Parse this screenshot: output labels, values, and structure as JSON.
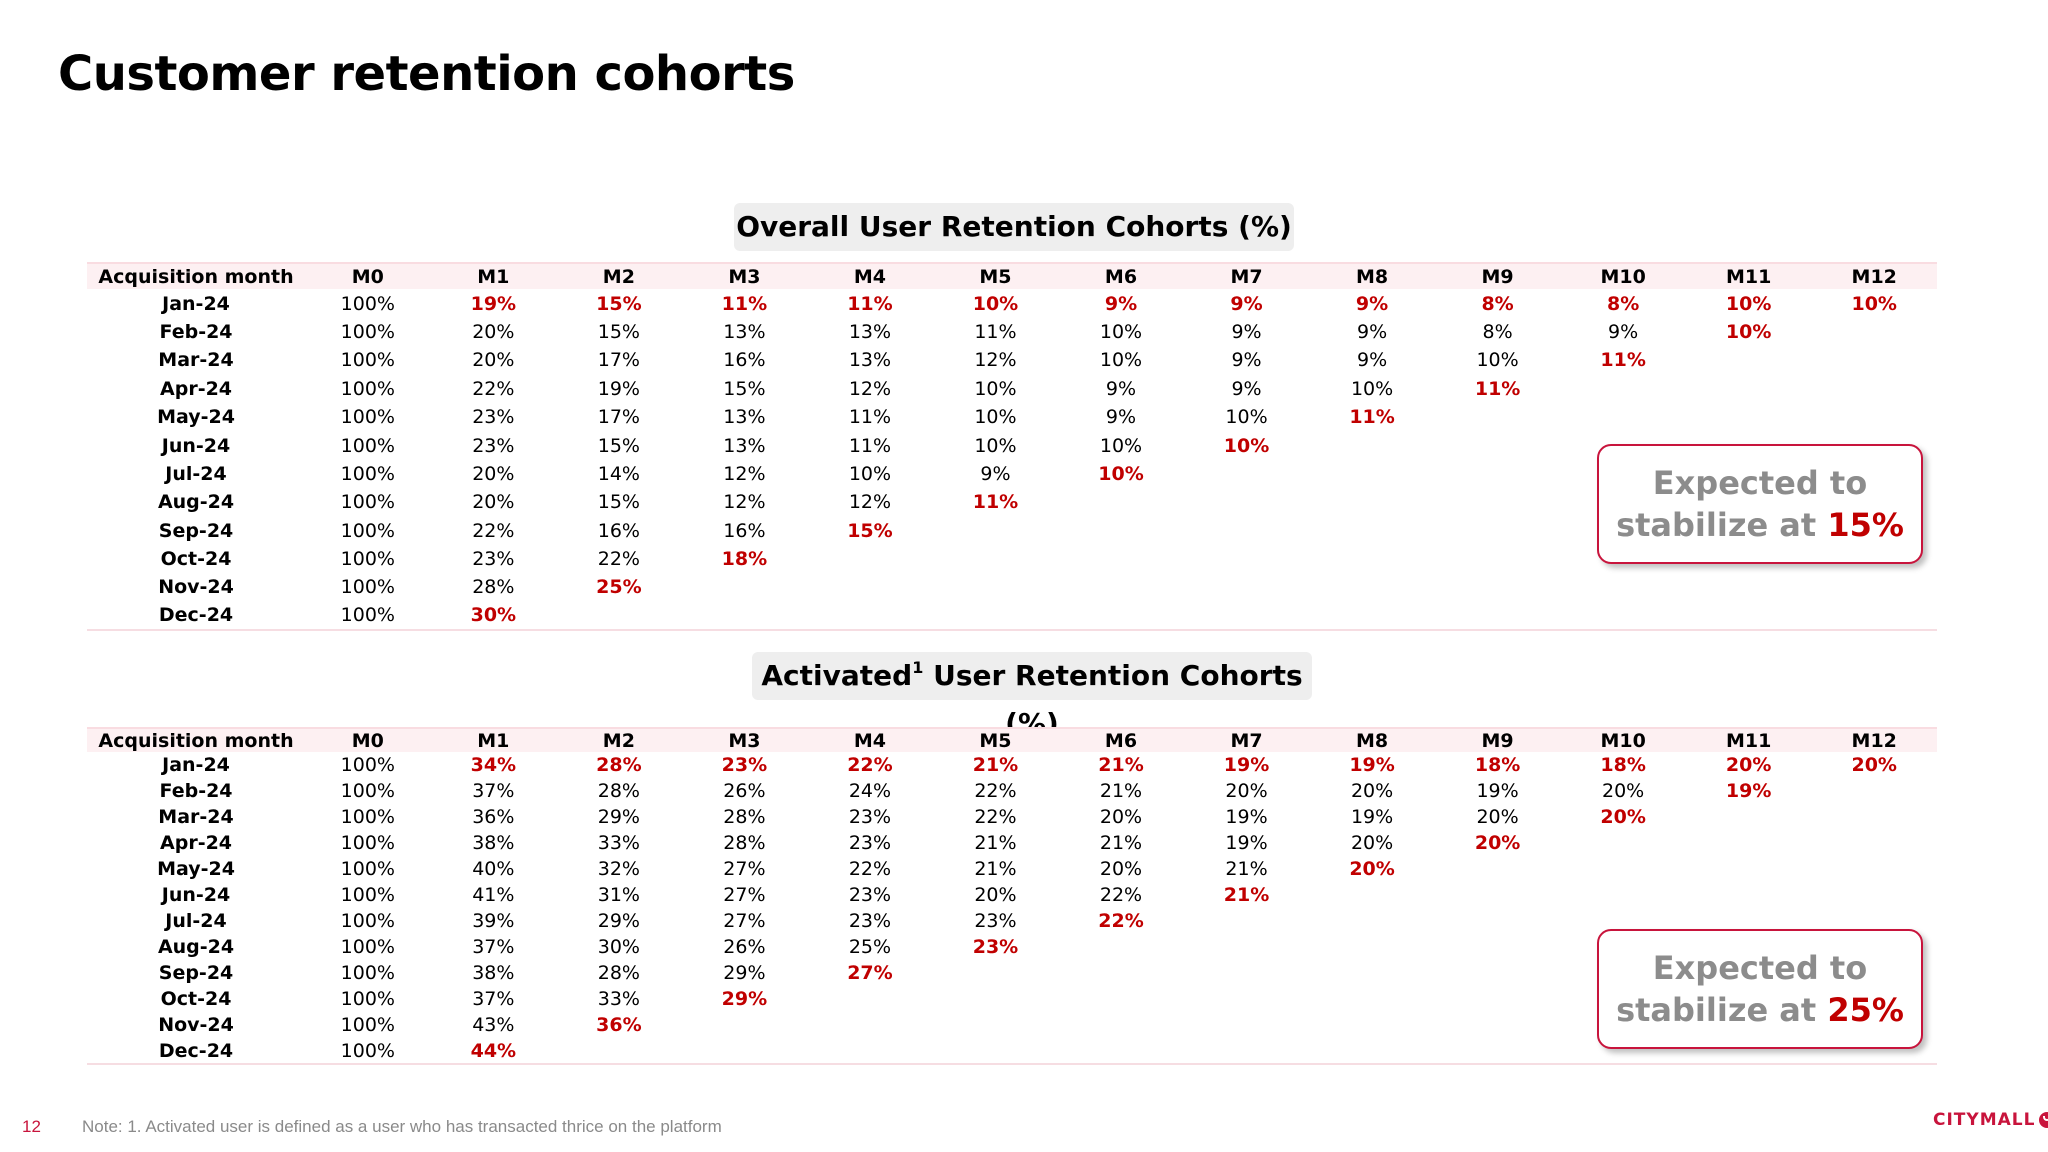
{
  "slide": {
    "title": "Customer retention cohorts",
    "page_number": "12",
    "note": "Note: 1. Activated user is defined as a user who has transacted thrice on the platform",
    "logo_text": "CITYMALL"
  },
  "colors": {
    "highlight": "#c00000",
    "brand": "#c8143c",
    "callout_text": "#8c8c8c",
    "header_band": "#fdf0f2"
  },
  "overall": {
    "title": "Overall User Retention Cohorts (%)",
    "columns": [
      "Acquisition  month",
      "M0",
      "M1",
      "M2",
      "M3",
      "M4",
      "M5",
      "M6",
      "M7",
      "M8",
      "M9",
      "M10",
      "M11",
      "M12"
    ],
    "rows": [
      {
        "month": "Jan-24",
        "values": [
          "100%",
          "19%",
          "15%",
          "11%",
          "11%",
          "10%",
          "9%",
          "9%",
          "9%",
          "8%",
          "8%",
          "10%",
          "10%"
        ],
        "highlight_from": 1
      },
      {
        "month": "Feb-24",
        "values": [
          "100%",
          "20%",
          "15%",
          "13%",
          "13%",
          "11%",
          "10%",
          "9%",
          "9%",
          "8%",
          "9%",
          "10%"
        ],
        "highlight_from": 11
      },
      {
        "month": "Mar-24",
        "values": [
          "100%",
          "20%",
          "17%",
          "16%",
          "13%",
          "12%",
          "10%",
          "9%",
          "9%",
          "10%",
          "11%"
        ],
        "highlight_from": 10
      },
      {
        "month": "Apr-24",
        "values": [
          "100%",
          "22%",
          "19%",
          "15%",
          "12%",
          "10%",
          "9%",
          "9%",
          "10%",
          "11%"
        ],
        "highlight_from": 9
      },
      {
        "month": "May-24",
        "values": [
          "100%",
          "23%",
          "17%",
          "13%",
          "11%",
          "10%",
          "9%",
          "10%",
          "11%"
        ],
        "highlight_from": 8
      },
      {
        "month": "Jun-24",
        "values": [
          "100%",
          "23%",
          "15%",
          "13%",
          "11%",
          "10%",
          "10%",
          "10%"
        ],
        "highlight_from": 7
      },
      {
        "month": "Jul-24",
        "values": [
          "100%",
          "20%",
          "14%",
          "12%",
          "10%",
          "9%",
          "10%"
        ],
        "highlight_from": 6
      },
      {
        "month": "Aug-24",
        "values": [
          "100%",
          "20%",
          "15%",
          "12%",
          "12%",
          "11%"
        ],
        "highlight_from": 5
      },
      {
        "month": "Sep-24",
        "values": [
          "100%",
          "22%",
          "16%",
          "16%",
          "15%"
        ],
        "highlight_from": 4
      },
      {
        "month": "Oct-24",
        "values": [
          "100%",
          "23%",
          "22%",
          "18%"
        ],
        "highlight_from": 3
      },
      {
        "month": "Nov-24",
        "values": [
          "100%",
          "28%",
          "25%"
        ],
        "highlight_from": 2
      },
      {
        "month": "Dec-24",
        "values": [
          "100%",
          "30%"
        ],
        "highlight_from": 1
      }
    ],
    "callout": {
      "line1": "Expected to",
      "line2_prefix": "stabilize at",
      "value": "15%"
    }
  },
  "activated": {
    "title_prefix": "Activated",
    "title_sup": "1",
    "title_suffix": " User Retention Cohorts (%)",
    "columns": [
      "Acquisition  month",
      "M0",
      "M1",
      "M2",
      "M3",
      "M4",
      "M5",
      "M6",
      "M7",
      "M8",
      "M9",
      "M10",
      "M11",
      "M12"
    ],
    "rows": [
      {
        "month": "Jan-24",
        "values": [
          "100%",
          "34%",
          "28%",
          "23%",
          "22%",
          "21%",
          "21%",
          "19%",
          "19%",
          "18%",
          "18%",
          "20%",
          "20%"
        ],
        "highlight_from": 1
      },
      {
        "month": "Feb-24",
        "values": [
          "100%",
          "37%",
          "28%",
          "26%",
          "24%",
          "22%",
          "21%",
          "20%",
          "20%",
          "19%",
          "20%",
          "19%"
        ],
        "highlight_from": 11
      },
      {
        "month": "Mar-24",
        "values": [
          "100%",
          "36%",
          "29%",
          "28%",
          "23%",
          "22%",
          "20%",
          "19%",
          "19%",
          "20%",
          "20%"
        ],
        "highlight_from": 10
      },
      {
        "month": "Apr-24",
        "values": [
          "100%",
          "38%",
          "33%",
          "28%",
          "23%",
          "21%",
          "21%",
          "19%",
          "20%",
          "20%"
        ],
        "highlight_from": 9
      },
      {
        "month": "May-24",
        "values": [
          "100%",
          "40%",
          "32%",
          "27%",
          "22%",
          "21%",
          "20%",
          "21%",
          "20%"
        ],
        "highlight_from": 8
      },
      {
        "month": "Jun-24",
        "values": [
          "100%",
          "41%",
          "31%",
          "27%",
          "23%",
          "20%",
          "22%",
          "21%"
        ],
        "highlight_from": 7
      },
      {
        "month": "Jul-24",
        "values": [
          "100%",
          "39%",
          "29%",
          "27%",
          "23%",
          "23%",
          "22%"
        ],
        "highlight_from": 6
      },
      {
        "month": "Aug-24",
        "values": [
          "100%",
          "37%",
          "30%",
          "26%",
          "25%",
          "23%"
        ],
        "highlight_from": 5
      },
      {
        "month": "Sep-24",
        "values": [
          "100%",
          "38%",
          "28%",
          "29%",
          "27%"
        ],
        "highlight_from": 4
      },
      {
        "month": "Oct-24",
        "values": [
          "100%",
          "37%",
          "33%",
          "29%"
        ],
        "highlight_from": 3
      },
      {
        "month": "Nov-24",
        "values": [
          "100%",
          "43%",
          "36%"
        ],
        "highlight_from": 2
      },
      {
        "month": "Dec-24",
        "values": [
          "100%",
          "44%"
        ],
        "highlight_from": 1
      }
    ],
    "callout": {
      "line1": "Expected to",
      "line2_prefix": "stabilize at",
      "value": "25%"
    }
  }
}
